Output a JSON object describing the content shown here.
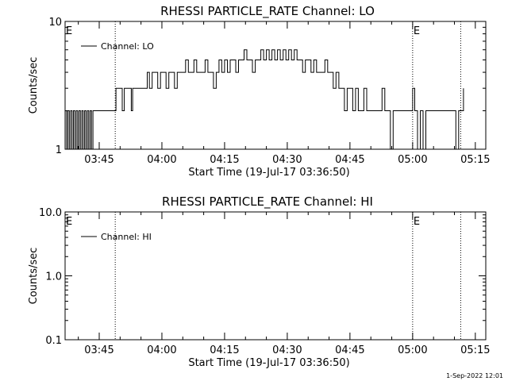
{
  "chart_data": [
    {
      "type": "line",
      "title": "RHESSI PARTICLE_RATE Channel: LO",
      "xlabel": "Start Time (19-Jul-17 03:36:50)",
      "ylabel": "Counts/sec",
      "y_scale": "log",
      "ylim": [
        1,
        10
      ],
      "y_ticks": [
        "1",
        "10"
      ],
      "xlim": [
        "03:36:50",
        "05:17:30"
      ],
      "x_ticks": [
        "03:45",
        "04:00",
        "04:15",
        "04:30",
        "04:45",
        "05:00",
        "05:15"
      ],
      "grid": false,
      "legend": {
        "position": "top-left",
        "entries": [
          "Channel: LO"
        ]
      },
      "markers": [
        {
          "time": "03:48:50",
          "label": ""
        },
        {
          "time": "05:00:00",
          "label": "E"
        },
        {
          "time": "05:11:30",
          "label": ""
        }
      ],
      "edge_labels": [
        "E"
      ],
      "series": [
        {
          "name": "Channel: LO",
          "points": [
            [
              "03:36:50",
              2
            ],
            [
              "03:37:10",
              1
            ],
            [
              "03:37:30",
              2
            ],
            [
              "03:37:50",
              1
            ],
            [
              "03:38:10",
              2
            ],
            [
              "03:38:30",
              1
            ],
            [
              "03:38:50",
              2
            ],
            [
              "03:39:10",
              1
            ],
            [
              "03:39:30",
              2
            ],
            [
              "03:39:50",
              1
            ],
            [
              "03:40:10",
              2
            ],
            [
              "03:40:30",
              1
            ],
            [
              "03:40:50",
              2
            ],
            [
              "03:41:10",
              1
            ],
            [
              "03:41:30",
              2
            ],
            [
              "03:41:50",
              1
            ],
            [
              "03:42:10",
              2
            ],
            [
              "03:42:30",
              1
            ],
            [
              "03:42:50",
              2
            ],
            [
              "03:43:10",
              1
            ],
            [
              "03:43:30",
              2
            ],
            [
              "03:44:00",
              2
            ],
            [
              "03:45:00",
              2
            ],
            [
              "03:46:00",
              2
            ],
            [
              "03:47:00",
              2
            ],
            [
              "03:48:00",
              2
            ],
            [
              "03:48:50",
              2
            ],
            [
              "03:49:00",
              3
            ],
            [
              "03:50:00",
              3
            ],
            [
              "03:50:30",
              2
            ],
            [
              "03:51:00",
              3
            ],
            [
              "03:52:00",
              3
            ],
            [
              "03:52:40",
              2
            ],
            [
              "03:53:00",
              3
            ],
            [
              "03:54:00",
              3
            ],
            [
              "03:55:00",
              3
            ],
            [
              "03:56:00",
              3
            ],
            [
              "03:56:30",
              4
            ],
            [
              "03:57:00",
              3
            ],
            [
              "03:57:40",
              4
            ],
            [
              "03:58:30",
              4
            ],
            [
              "03:59:00",
              3
            ],
            [
              "03:59:40",
              4
            ],
            [
              "04:00:20",
              4
            ],
            [
              "04:01:00",
              3
            ],
            [
              "04:01:40",
              4
            ],
            [
              "04:02:20",
              4
            ],
            [
              "04:03:00",
              3
            ],
            [
              "04:03:40",
              4
            ],
            [
              "04:04:20",
              4
            ],
            [
              "04:05:00",
              4
            ],
            [
              "04:05:40",
              5
            ],
            [
              "04:06:20",
              4
            ],
            [
              "04:07:00",
              4
            ],
            [
              "04:07:40",
              5
            ],
            [
              "04:08:20",
              4
            ],
            [
              "04:09:00",
              4
            ],
            [
              "04:09:40",
              4
            ],
            [
              "04:10:20",
              5
            ],
            [
              "04:11:00",
              4
            ],
            [
              "04:11:40",
              4
            ],
            [
              "04:12:20",
              3
            ],
            [
              "04:13:00",
              4
            ],
            [
              "04:13:40",
              5
            ],
            [
              "04:14:20",
              4
            ],
            [
              "04:15:00",
              5
            ],
            [
              "04:15:40",
              4
            ],
            [
              "04:16:20",
              5
            ],
            [
              "04:17:00",
              5
            ],
            [
              "04:17:40",
              4
            ],
            [
              "04:18:20",
              5
            ],
            [
              "04:19:00",
              5
            ],
            [
              "04:19:40",
              6
            ],
            [
              "04:20:20",
              5
            ],
            [
              "04:21:00",
              5
            ],
            [
              "04:21:40",
              4
            ],
            [
              "04:22:20",
              5
            ],
            [
              "04:23:00",
              5
            ],
            [
              "04:23:40",
              6
            ],
            [
              "04:24:20",
              5
            ],
            [
              "04:25:00",
              6
            ],
            [
              "04:25:40",
              5
            ],
            [
              "04:26:20",
              6
            ],
            [
              "04:27:00",
              5
            ],
            [
              "04:27:40",
              6
            ],
            [
              "04:28:20",
              5
            ],
            [
              "04:29:00",
              6
            ],
            [
              "04:29:40",
              5
            ],
            [
              "04:30:20",
              6
            ],
            [
              "04:31:00",
              5
            ],
            [
              "04:31:40",
              6
            ],
            [
              "04:32:20",
              5
            ],
            [
              "04:33:00",
              5
            ],
            [
              "04:33:40",
              4
            ],
            [
              "04:34:20",
              5
            ],
            [
              "04:35:00",
              5
            ],
            [
              "04:35:40",
              4
            ],
            [
              "04:36:20",
              5
            ],
            [
              "04:37:00",
              4
            ],
            [
              "04:37:40",
              4
            ],
            [
              "04:38:20",
              4
            ],
            [
              "04:39:00",
              5
            ],
            [
              "04:39:40",
              4
            ],
            [
              "04:40:20",
              4
            ],
            [
              "04:41:00",
              3
            ],
            [
              "04:41:40",
              4
            ],
            [
              "04:42:20",
              3
            ],
            [
              "04:43:00",
              3
            ],
            [
              "04:43:40",
              2
            ],
            [
              "04:44:20",
              3
            ],
            [
              "04:45:00",
              3
            ],
            [
              "04:45:40",
              2
            ],
            [
              "04:46:20",
              3
            ],
            [
              "04:47:00",
              2
            ],
            [
              "04:47:40",
              2
            ],
            [
              "04:48:20",
              3
            ],
            [
              "04:49:00",
              2
            ],
            [
              "04:50:00",
              2
            ],
            [
              "04:51:00",
              2
            ],
            [
              "04:52:00",
              2
            ],
            [
              "04:52:40",
              3
            ],
            [
              "04:53:20",
              2
            ],
            [
              "04:54:00",
              2
            ],
            [
              "04:54:40",
              1
            ],
            [
              "04:55:20",
              2
            ],
            [
              "04:56:00",
              2
            ],
            [
              "04:57:00",
              2
            ],
            [
              "04:58:00",
              2
            ],
            [
              "04:59:00",
              2
            ],
            [
              "05:00:00",
              3
            ],
            [
              "05:00:30",
              2
            ],
            [
              "05:01:10",
              1
            ],
            [
              "05:01:50",
              2
            ],
            [
              "05:02:30",
              1
            ],
            [
              "05:03:10",
              2
            ],
            [
              "05:05:00",
              2
            ],
            [
              "05:07:00",
              2
            ],
            [
              "05:09:00",
              2
            ],
            [
              "05:10:20",
              1
            ],
            [
              "05:11:00",
              2
            ],
            [
              "05:11:30",
              2
            ],
            [
              "05:12:10",
              3
            ]
          ]
        }
      ]
    },
    {
      "type": "line",
      "title": "RHESSI PARTICLE_RATE Channel: HI",
      "xlabel": "Start Time (19-Jul-17 03:36:50)",
      "ylabel": "Counts/sec",
      "y_scale": "log",
      "ylim": [
        0.1,
        10
      ],
      "y_ticks": [
        "0.1",
        "1.0",
        "10.0"
      ],
      "xlim": [
        "03:36:50",
        "05:17:30"
      ],
      "x_ticks": [
        "03:45",
        "04:00",
        "04:15",
        "04:30",
        "04:45",
        "05:00",
        "05:15"
      ],
      "grid": false,
      "legend": {
        "position": "top-left",
        "entries": [
          "Channel: HI"
        ]
      },
      "markers": [
        {
          "time": "03:48:50",
          "label": ""
        },
        {
          "time": "05:00:00",
          "label": "E"
        },
        {
          "time": "05:11:30",
          "label": ""
        }
      ],
      "edge_labels": [
        "E"
      ],
      "series": [
        {
          "name": "Channel: HI",
          "points": []
        }
      ]
    }
  ],
  "footer": {
    "timestamp": "1-Sep-2022 12:01"
  }
}
